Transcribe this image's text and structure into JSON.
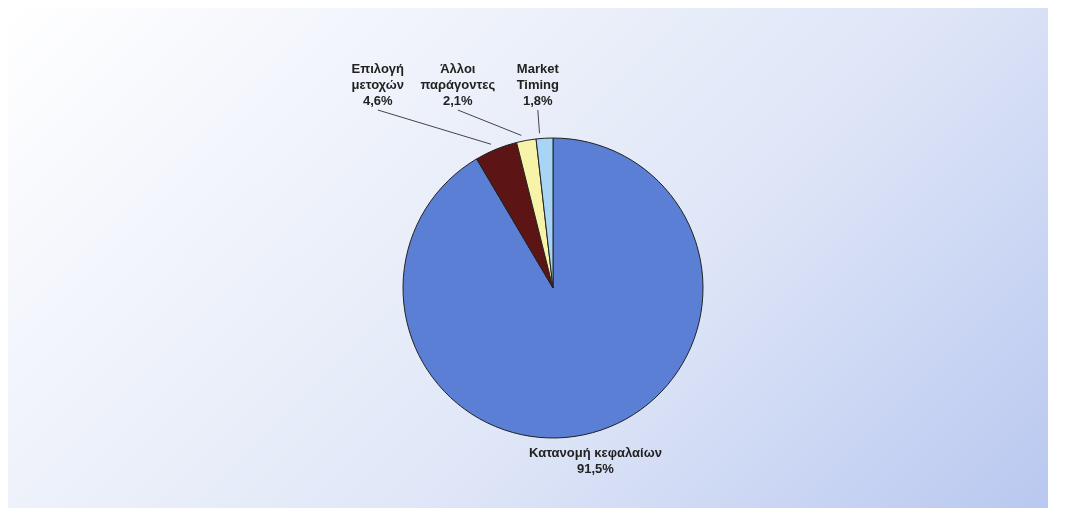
{
  "chart_data": {
    "type": "pie",
    "categories": [
      "Κατανομή κεφαλαίων",
      "Επιλογή μετοχών",
      "Άλλοι παράγοντες",
      "Market Timing"
    ],
    "values": [
      91.5,
      4.6,
      2.1,
      1.8
    ],
    "colors": [
      "#5a7fd4",
      "#5c1414",
      "#f7f3a8",
      "#a8d4f5"
    ],
    "value_labels": [
      "91,5%",
      "4,6%",
      "2,1%",
      "1,8%"
    ]
  }
}
